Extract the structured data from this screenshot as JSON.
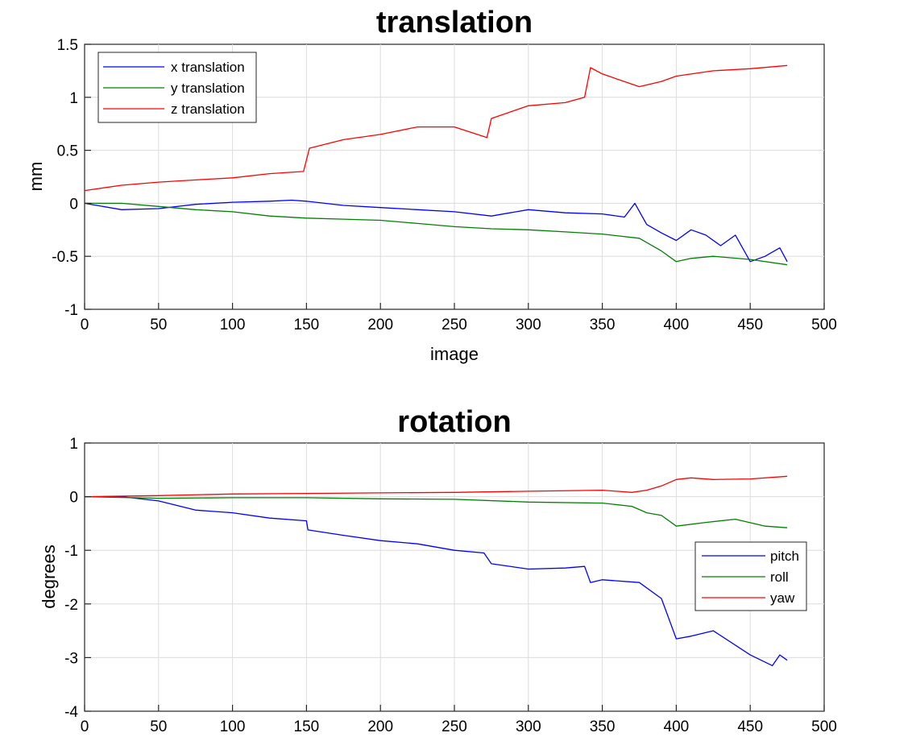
{
  "chart_data": [
    {
      "type": "line",
      "title": "translation",
      "xlabel": "image",
      "ylabel": "mm",
      "xlim": [
        0,
        500
      ],
      "ylim": [
        -1,
        1.5
      ],
      "xticks": [
        0,
        50,
        100,
        150,
        200,
        250,
        300,
        350,
        400,
        450,
        500
      ],
      "yticks": [
        -1,
        -0.5,
        0,
        0.5,
        1,
        1.5
      ],
      "xtick_labels": [
        "0",
        "50",
        "100",
        "150",
        "200",
        "250",
        "300",
        "350",
        "400",
        "450",
        "500"
      ],
      "ytick_labels": [
        "-1",
        "-0.5",
        "0",
        "0.5",
        "1",
        "1.5"
      ],
      "grid": true,
      "legend_position": "top-left",
      "series": [
        {
          "name": "x translation",
          "color": "#0000ff",
          "x": [
            0,
            25,
            50,
            75,
            100,
            125,
            140,
            150,
            175,
            200,
            225,
            250,
            275,
            300,
            325,
            350,
            365,
            372,
            380,
            390,
            400,
            410,
            420,
            430,
            440,
            450,
            460,
            470,
            475
          ],
          "y": [
            0,
            -0.06,
            -0.05,
            -0.01,
            0.01,
            0.02,
            0.03,
            0.02,
            -0.02,
            -0.04,
            -0.06,
            -0.08,
            -0.12,
            -0.06,
            -0.09,
            -0.1,
            -0.13,
            0.0,
            -0.2,
            -0.28,
            -0.35,
            -0.25,
            -0.3,
            -0.4,
            -0.3,
            -0.55,
            -0.5,
            -0.42,
            -0.55
          ]
        },
        {
          "name": "y translation",
          "color": "#008000",
          "x": [
            0,
            25,
            50,
            75,
            100,
            125,
            150,
            175,
            200,
            225,
            250,
            275,
            300,
            325,
            350,
            375,
            390,
            400,
            410,
            425,
            450,
            475
          ],
          "y": [
            0,
            0.0,
            -0.03,
            -0.06,
            -0.08,
            -0.12,
            -0.14,
            -0.15,
            -0.16,
            -0.19,
            -0.22,
            -0.24,
            -0.25,
            -0.27,
            -0.29,
            -0.33,
            -0.45,
            -0.55,
            -0.52,
            -0.5,
            -0.53,
            -0.58
          ]
        },
        {
          "name": "z translation",
          "color": "#ff0000",
          "x": [
            0,
            25,
            50,
            75,
            100,
            125,
            148,
            152,
            175,
            200,
            225,
            250,
            272,
            275,
            300,
            325,
            338,
            342,
            350,
            375,
            390,
            400,
            425,
            450,
            475
          ],
          "y": [
            0.12,
            0.17,
            0.2,
            0.22,
            0.24,
            0.28,
            0.3,
            0.52,
            0.6,
            0.65,
            0.72,
            0.72,
            0.62,
            0.8,
            0.92,
            0.95,
            1.0,
            1.28,
            1.22,
            1.1,
            1.15,
            1.2,
            1.25,
            1.27,
            1.3
          ]
        }
      ]
    },
    {
      "type": "line",
      "title": "rotation",
      "xlabel": "",
      "ylabel": "degrees",
      "xlim": [
        0,
        500
      ],
      "ylim": [
        -4,
        1
      ],
      "xticks": [
        0,
        50,
        100,
        150,
        200,
        250,
        300,
        350,
        400,
        450,
        500
      ],
      "yticks": [
        -4,
        -3,
        -2,
        -1,
        0,
        1
      ],
      "xtick_labels": [
        "0",
        "50",
        "100",
        "150",
        "200",
        "250",
        "300",
        "350",
        "400",
        "450",
        "500"
      ],
      "ytick_labels": [
        "-4",
        "-3",
        "-2",
        "-1",
        "0",
        "1"
      ],
      "grid": true,
      "legend_position": "center-right",
      "series": [
        {
          "name": "pitch",
          "color": "#0000ff",
          "x": [
            0,
            25,
            50,
            75,
            100,
            125,
            150,
            151,
            175,
            200,
            225,
            250,
            270,
            275,
            300,
            325,
            338,
            342,
            350,
            375,
            390,
            400,
            410,
            425,
            450,
            465,
            470,
            475
          ],
          "y": [
            0,
            0.0,
            -0.08,
            -0.25,
            -0.3,
            -0.4,
            -0.45,
            -0.62,
            -0.72,
            -0.82,
            -0.88,
            -1.0,
            -1.05,
            -1.25,
            -1.35,
            -1.33,
            -1.3,
            -1.6,
            -1.55,
            -1.6,
            -1.9,
            -2.65,
            -2.6,
            -2.5,
            -2.95,
            -3.15,
            -2.95,
            -3.05
          ]
        },
        {
          "name": "roll",
          "color": "#008000",
          "x": [
            0,
            50,
            100,
            150,
            200,
            250,
            300,
            350,
            370,
            380,
            390,
            400,
            420,
            440,
            460,
            475
          ],
          "y": [
            0,
            -0.03,
            -0.02,
            -0.02,
            -0.04,
            -0.05,
            -0.1,
            -0.12,
            -0.18,
            -0.3,
            -0.35,
            -0.55,
            -0.48,
            -0.42,
            -0.55,
            -0.58
          ]
        },
        {
          "name": "yaw",
          "color": "#ff0000",
          "x": [
            0,
            50,
            100,
            150,
            200,
            250,
            300,
            350,
            370,
            380,
            390,
            400,
            410,
            425,
            450,
            475
          ],
          "y": [
            0,
            0.02,
            0.05,
            0.06,
            0.07,
            0.08,
            0.1,
            0.12,
            0.08,
            0.12,
            0.2,
            0.32,
            0.35,
            0.32,
            0.33,
            0.38
          ]
        }
      ]
    }
  ]
}
